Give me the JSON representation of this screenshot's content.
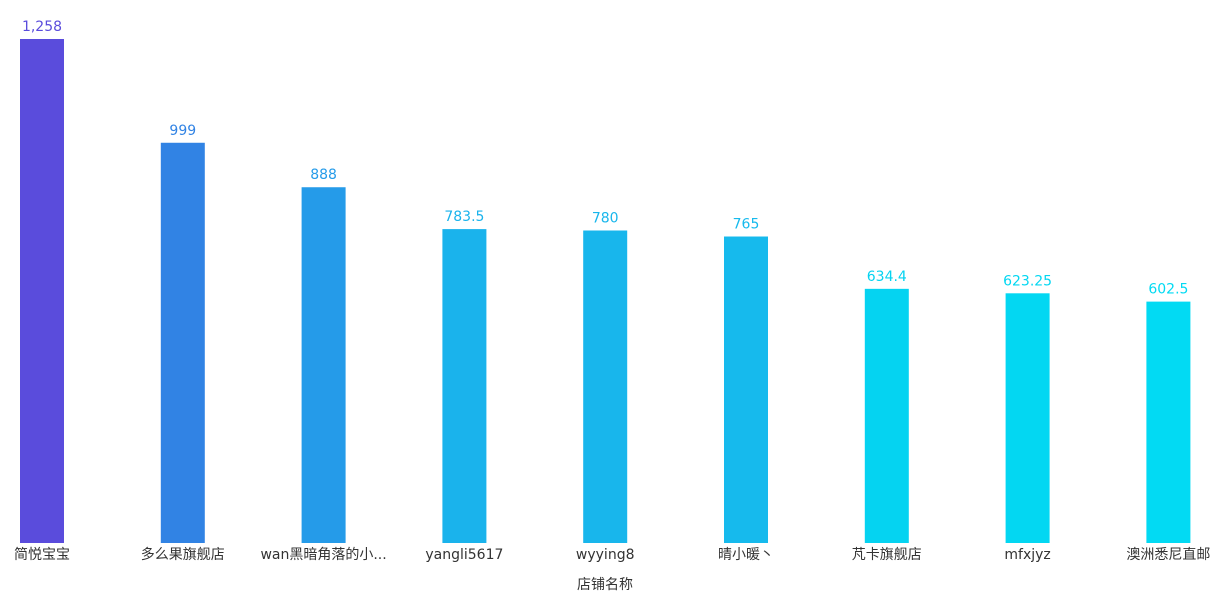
{
  "chart_data": {
    "type": "bar",
    "x_label": "店铺名称",
    "categories": [
      "简悦宝宝",
      "多么果旗舰店",
      "wan黑暗角落的小...",
      "yangli5617",
      "wyying8",
      "晴小暖丶",
      "芃卡旗舰店",
      "mfxjyz",
      "澳洲悉尼直邮"
    ],
    "values": [
      1258,
      999,
      888,
      783.5,
      780,
      765,
      634.4,
      623.25,
      602.5
    ],
    "value_labels": [
      "1,258",
      "999",
      "888",
      "783.5",
      "780",
      "765",
      "634.4",
      "623.25",
      "602.5"
    ],
    "colors": [
      "#5a4cdc",
      "#3183e4",
      "#259be9",
      "#1ab3ec",
      "#18b6ec",
      "#16baed",
      "#05d3f1",
      "#03d7f2",
      "#02daf3"
    ]
  }
}
